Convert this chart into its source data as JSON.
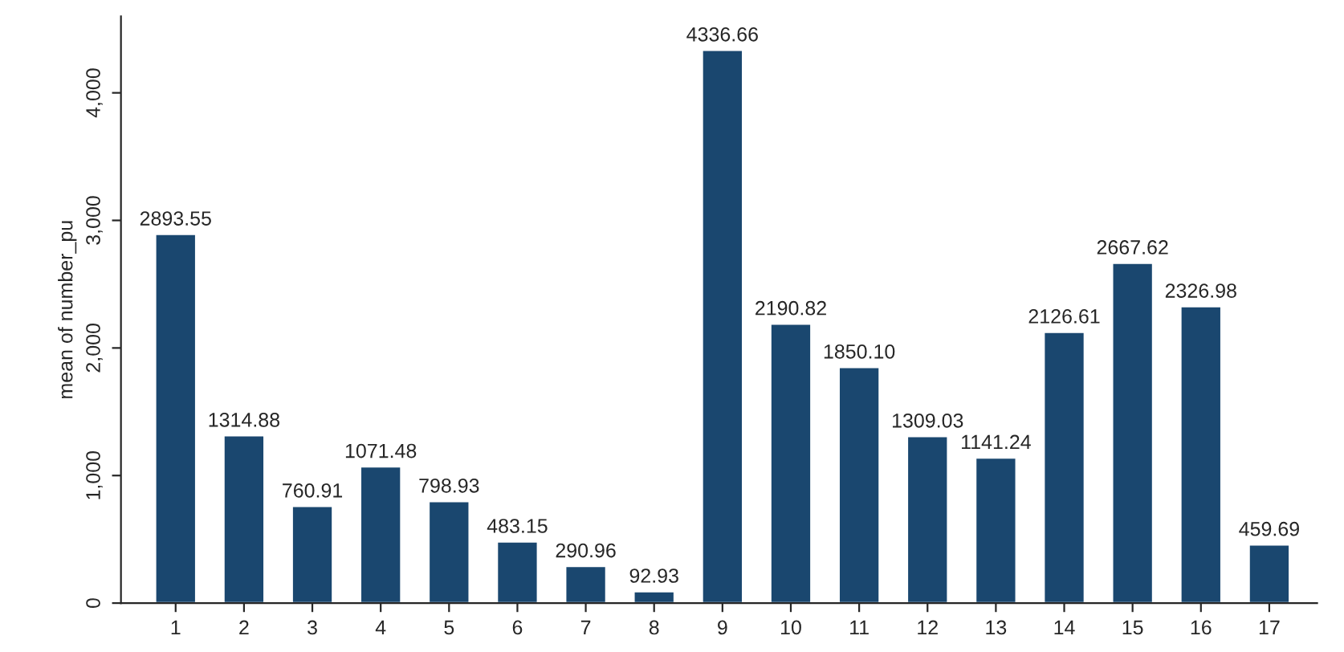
{
  "chart_data": {
    "type": "bar",
    "ylabel": "mean of number_pu",
    "categories": [
      "1",
      "2",
      "3",
      "4",
      "5",
      "6",
      "7",
      "8",
      "9",
      "10",
      "11",
      "12",
      "13",
      "14",
      "15",
      "16",
      "17"
    ],
    "values": [
      2893.55,
      1314.88,
      760.91,
      1071.48,
      798.93,
      483.15,
      290.96,
      92.93,
      4336.66,
      2190.82,
      1850.1,
      1309.03,
      1141.24,
      2126.61,
      2667.62,
      2326.98,
      459.69
    ],
    "value_labels": [
      "2893.55",
      "1314.88",
      "760.91",
      "1071.48",
      "798.93",
      "483.15",
      "290.96",
      "92.93",
      "4336.66",
      "2190.82",
      "1850.10",
      "1309.03",
      "1141.24",
      "2126.61",
      "2667.62",
      "2326.98",
      "459.69"
    ],
    "color": "#1a476f",
    "ylim": [
      0,
      4600
    ],
    "yticks": [
      0,
      {
        "value": 1000,
        "label": "1,000"
      },
      {
        "value": 2000,
        "label": "2,000"
      },
      {
        "value": 3000,
        "label": "3,000"
      },
      {
        "value": 4000,
        "label": "4,000"
      }
    ],
    "grid": false,
    "legend": false
  }
}
